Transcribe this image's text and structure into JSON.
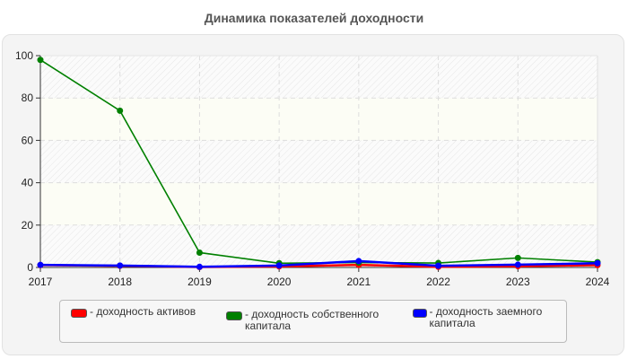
{
  "title": "Динамика показателей доходности",
  "chart_data": {
    "type": "line",
    "title": "Динамика показателей доходности",
    "xlabel": "",
    "ylabel": "",
    "x": [
      "2017",
      "2018",
      "2019",
      "2020",
      "2021",
      "2022",
      "2023",
      "2024"
    ],
    "ylim": [
      0,
      100
    ],
    "yticks": [
      0,
      20,
      40,
      60,
      80,
      100
    ],
    "grid": true,
    "legend_position": "bottom",
    "series": [
      {
        "name": "- доходность активов",
        "color": "#ff0000",
        "values": [
          1.1,
          0.8,
          0.2,
          0.5,
          1.2,
          0.3,
          0.6,
          1.1
        ]
      },
      {
        "name": "- доходность собственного капитала",
        "color": "#008000",
        "values": [
          98,
          74,
          7,
          2,
          2.3,
          2.1,
          4.5,
          2.5
        ]
      },
      {
        "name": "- доходность заемного капитала",
        "color": "#0000ff",
        "values": [
          1.2,
          0.9,
          0.3,
          0.9,
          3,
          0.8,
          1.3,
          2
        ]
      }
    ]
  },
  "legend": {
    "items": [
      {
        "label": "- доходность активов",
        "color": "#ff0000"
      },
      {
        "label": "- доходность собственного капитала",
        "color": "#008000"
      },
      {
        "label": "- доходность заемного капитала",
        "color": "#0000ff"
      }
    ]
  }
}
